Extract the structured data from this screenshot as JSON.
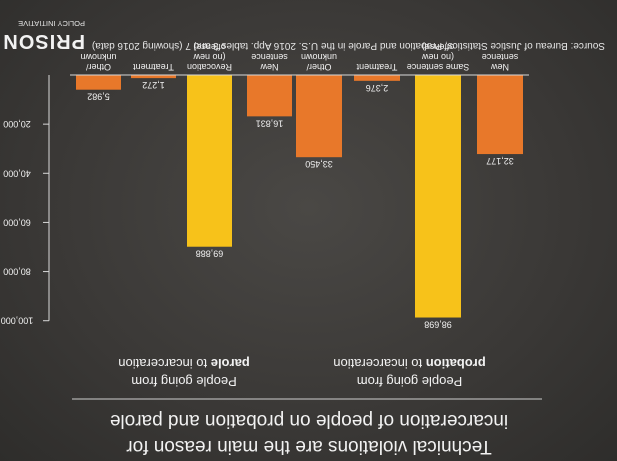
{
  "brand": {
    "top": "PRISON",
    "bottom": "POLICY INITIATIVE"
  },
  "source": "Source: Bureau of Justice Statistics, Probation and Parole in the U.S. 2016 App. tables 3 and 7 (showing 2016 data)",
  "headline": [
    "Technical violations are the main reason for",
    "incarceration of people on probation and parole"
  ],
  "colors": {
    "orange": "#e8782a",
    "yellow": "#f7c21a",
    "background": "#3c3a38",
    "text": "#f2f2f2",
    "axis": "#d9d9d9"
  },
  "chart_data": {
    "type": "bar",
    "y_ticks": [
      "20,000",
      "40,000",
      "60,000",
      "80,000",
      "100,000"
    ],
    "ylim": [
      0,
      105000
    ],
    "groups": [
      {
        "caption_line1": "People going from",
        "caption_bold": "probation",
        "caption_rest": " to incarceration",
        "bars": [
          {
            "label": [
              "New",
              "sentence"
            ],
            "value": 32177,
            "value_label": "32,177",
            "color": "orange"
          },
          {
            "label": [
              "Same sentence",
              "(no new",
              "offense)"
            ],
            "value": 98698,
            "value_label": "98,698",
            "color": "yellow"
          },
          {
            "label": [
              "Treatment"
            ],
            "value": 2376,
            "value_label": "2,376",
            "color": "orange"
          },
          {
            "label": [
              "Other/",
              "unknown"
            ],
            "value": 33450,
            "value_label": "33,450",
            "color": "orange"
          }
        ]
      },
      {
        "caption_line1": "People going from",
        "caption_bold": "parole",
        "caption_rest": " to incarceration",
        "bars": [
          {
            "label": [
              "New",
              "sentence"
            ],
            "value": 16831,
            "value_label": "16,831",
            "color": "orange"
          },
          {
            "label": [
              "Revocation",
              "(no new",
              "offense)"
            ],
            "value": 69888,
            "value_label": "69,888",
            "color": "yellow"
          },
          {
            "label": [
              "Treatment"
            ],
            "value": 1272,
            "value_label": "1,272",
            "color": "orange"
          },
          {
            "label": [
              "Other/",
              "unknown"
            ],
            "value": 5982,
            "value_label": "5,982",
            "color": "orange"
          }
        ]
      }
    ]
  }
}
